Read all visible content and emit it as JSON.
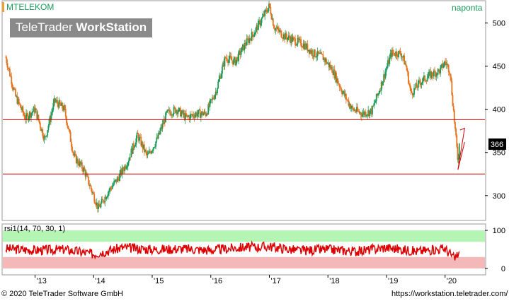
{
  "header": {
    "symbol": "MTELEKOM",
    "period": "naponta",
    "watermark_brand": "TeleTrader",
    "watermark_product": "WorkStation"
  },
  "footer": {
    "copyright": "© 2020 TeleTrader Software GmbH",
    "url": "https://workstation.teletrader.com/"
  },
  "colors": {
    "up": "#1a9a5a",
    "down": "#e8731c",
    "support_line": "#cc0000",
    "rsi_line": "#dd0000",
    "rsi_upper_band": "#b4f5b4",
    "rsi_lower_band": "#f5b8b8",
    "axis": "#9a9a9a"
  },
  "chart_data": [
    {
      "type": "candlestick",
      "title": "MTELEKOM",
      "x_ticks": [
        "'13",
        "'14",
        "'15",
        "'16",
        "'17",
        "'18",
        "'19",
        "'20"
      ],
      "y_ticks": [
        300,
        350,
        400,
        450,
        500
      ],
      "ylim": [
        272,
        525
      ],
      "last_value": "366",
      "series": [
        {
          "name": "MTELEKOM",
          "points": [
            [
              "2012-07",
              460
            ],
            [
              "2012-09",
              415
            ],
            [
              "2012-11",
              390
            ],
            [
              "2013-01",
              400
            ],
            [
              "2013-03",
              365
            ],
            [
              "2013-05",
              410
            ],
            [
              "2013-07",
              400
            ],
            [
              "2013-09",
              345
            ],
            [
              "2013-11",
              330
            ],
            [
              "2014-01",
              300
            ],
            [
              "2014-02",
              285
            ],
            [
              "2014-04",
              305
            ],
            [
              "2014-06",
              320
            ],
            [
              "2014-08",
              340
            ],
            [
              "2014-10",
              370
            ],
            [
              "2014-12",
              345
            ],
            [
              "2015-02",
              365
            ],
            [
              "2015-04",
              395
            ],
            [
              "2015-06",
              400
            ],
            [
              "2015-08",
              390
            ],
            [
              "2015-10",
              395
            ],
            [
              "2015-12",
              395
            ],
            [
              "2016-02",
              420
            ],
            [
              "2016-04",
              460
            ],
            [
              "2016-06",
              455
            ],
            [
              "2016-08",
              475
            ],
            [
              "2016-10",
              490
            ],
            [
              "2016-12",
              510
            ],
            [
              "2017-01",
              520
            ],
            [
              "2017-02",
              495
            ],
            [
              "2017-04",
              485
            ],
            [
              "2017-06",
              480
            ],
            [
              "2017-08",
              475
            ],
            [
              "2017-10",
              465
            ],
            [
              "2017-12",
              460
            ],
            [
              "2018-02",
              445
            ],
            [
              "2018-04",
              420
            ],
            [
              "2018-06",
              400
            ],
            [
              "2018-08",
              395
            ],
            [
              "2018-10",
              398
            ],
            [
              "2018-12",
              430
            ],
            [
              "2019-02",
              465
            ],
            [
              "2019-04",
              465
            ],
            [
              "2019-05",
              450
            ],
            [
              "2019-06",
              418
            ],
            [
              "2019-08",
              432
            ],
            [
              "2019-10",
              440
            ],
            [
              "2019-12",
              445
            ],
            [
              "2020-01",
              455
            ],
            [
              "2020-02",
              445
            ],
            [
              "2020-03",
              380
            ],
            [
              "2020-03-20",
              340
            ],
            [
              "2020-04",
              366
            ]
          ]
        }
      ],
      "annotations": {
        "horizontal_lines": [
          388,
          325
        ],
        "triangle_pattern": "red"
      }
    },
    {
      "type": "line",
      "title": "rsi1(14, 70, 30, 1)",
      "y_ticks": [
        0,
        100
      ],
      "bands": {
        "upper": [
          70,
          100
        ],
        "lower": [
          0,
          30
        ]
      },
      "ylim": [
        -15,
        115
      ],
      "series": [
        {
          "name": "rsi1",
          "points": [
            [
              "2012-07",
              52
            ],
            [
              "2013-01",
              48
            ],
            [
              "2013-07",
              50
            ],
            [
              "2014-01",
              38
            ],
            [
              "2014-07",
              55
            ],
            [
              "2015-01",
              50
            ],
            [
              "2015-07",
              52
            ],
            [
              "2016-01",
              48
            ],
            [
              "2016-07",
              55
            ],
            [
              "2017-01",
              58
            ],
            [
              "2017-07",
              47
            ],
            [
              "2018-01",
              50
            ],
            [
              "2018-07",
              45
            ],
            [
              "2019-01",
              55
            ],
            [
              "2019-07",
              45
            ],
            [
              "2020-01",
              52
            ],
            [
              "2020-03",
              25
            ],
            [
              "2020-04",
              45
            ]
          ]
        }
      ]
    }
  ]
}
